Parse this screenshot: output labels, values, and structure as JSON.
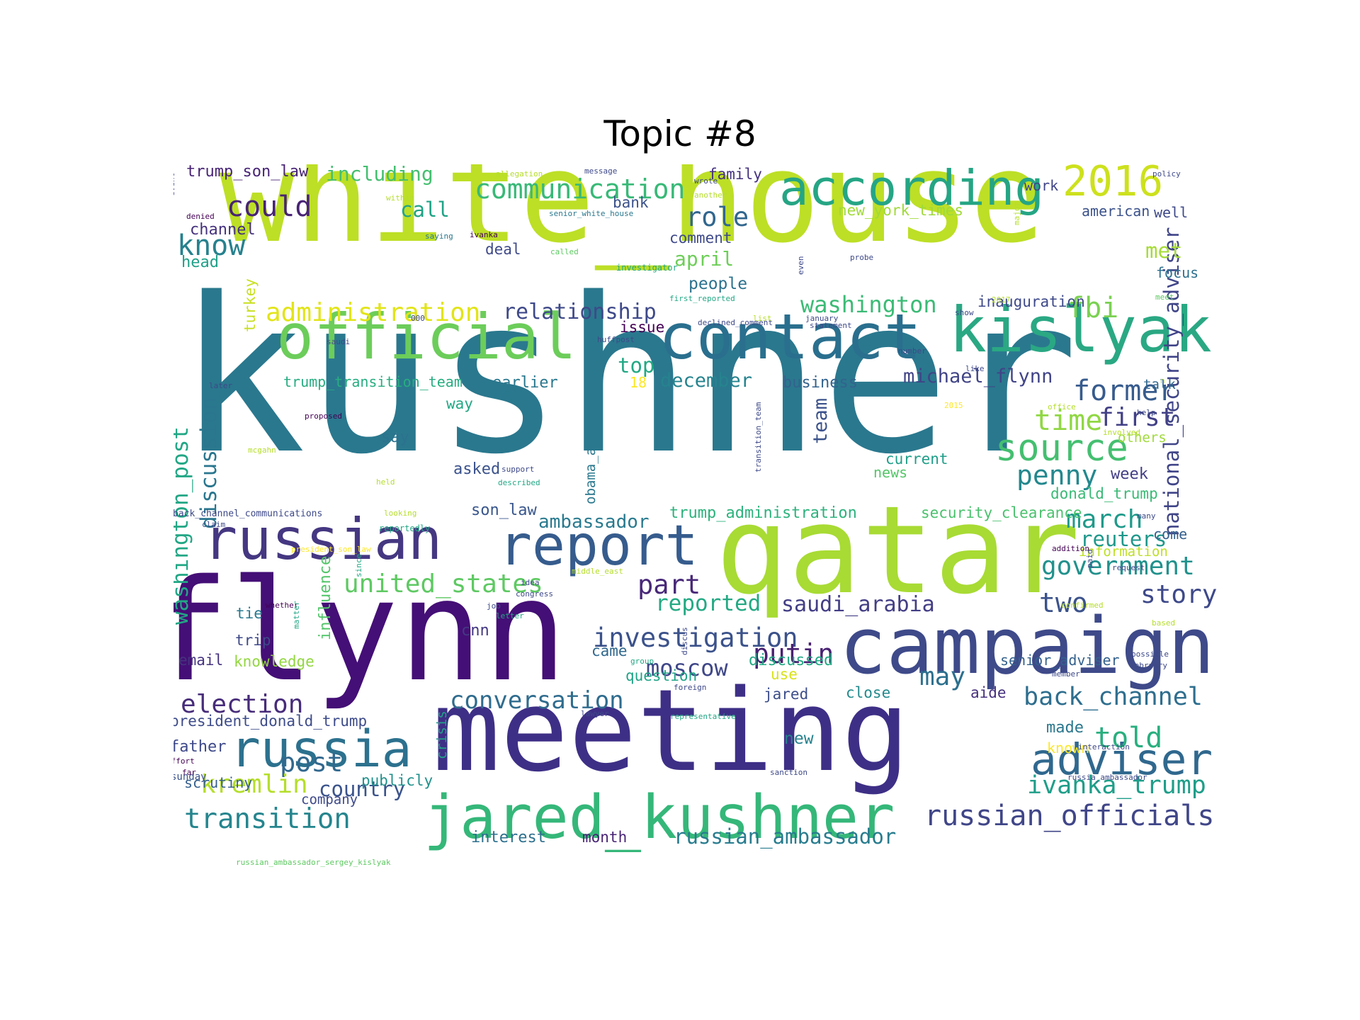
{
  "title": "Topic #8",
  "words": [
    {
      "text": "kushner",
      "color": "#2a788e"
    },
    {
      "text": "white_house",
      "color": "#bddf26"
    },
    {
      "text": "flynn",
      "color": "#440f76"
    },
    {
      "text": "qatar",
      "color": "#a8db34"
    },
    {
      "text": "meeting",
      "color": "#3e2f86"
    },
    {
      "text": "campaign",
      "color": "#3e4a89"
    },
    {
      "text": "contact",
      "color": "#2a6f8e"
    },
    {
      "text": "kislyak",
      "color": "#2aa883"
    },
    {
      "text": "official",
      "color": "#6ccd5a"
    },
    {
      "text": "according",
      "color": "#25a584"
    },
    {
      "text": "jared_kushner",
      "color": "#35b779"
    },
    {
      "text": "russian",
      "color": "#453781"
    },
    {
      "text": "report",
      "color": "#365c8d"
    },
    {
      "text": "russia",
      "color": "#2c718e"
    },
    {
      "text": "adviser",
      "color": "#30688e"
    },
    {
      "text": "2016",
      "color": "#cde11d"
    },
    {
      "text": "source",
      "color": "#44bf70"
    },
    {
      "text": "communication",
      "color": "#38b977"
    },
    {
      "text": "investigation",
      "color": "#3b528b"
    },
    {
      "text": "conversation",
      "color": "#2f6c8e"
    },
    {
      "text": "russian_officials",
      "color": "#404688"
    },
    {
      "text": "election",
      "color": "#472c7a"
    },
    {
      "text": "transition",
      "color": "#25858e"
    },
    {
      "text": "could",
      "color": "#482374"
    },
    {
      "text": "know",
      "color": "#26818e"
    },
    {
      "text": "role",
      "color": "#31668e"
    },
    {
      "text": "administration",
      "color": "#e2e418"
    },
    {
      "text": "relationship",
      "color": "#3e4989"
    },
    {
      "text": "washington",
      "color": "#3bbb75"
    },
    {
      "text": "fbi",
      "color": "#7ad151"
    },
    {
      "text": "former",
      "color": "#375b8d"
    },
    {
      "text": "first",
      "color": "#424086"
    },
    {
      "text": "time",
      "color": "#90d743"
    },
    {
      "text": "penny",
      "color": "#23888e"
    },
    {
      "text": "march",
      "color": "#1f9a8a"
    },
    {
      "text": "reuters",
      "color": "#1f988b"
    },
    {
      "text": "government",
      "color": "#21918c"
    },
    {
      "text": "story",
      "color": "#3e4989"
    },
    {
      "text": "two",
      "color": "#3b528b"
    },
    {
      "text": "told",
      "color": "#29af7f"
    },
    {
      "text": "back_channel",
      "color": "#2e6e8e"
    },
    {
      "text": "ivanka_trump",
      "color": "#1f9e89"
    },
    {
      "text": "russian_ambassador",
      "color": "#287c8e"
    },
    {
      "text": "united_states",
      "color": "#5ec962"
    },
    {
      "text": "part",
      "color": "#482878"
    },
    {
      "text": "reported",
      "color": "#23a983"
    },
    {
      "text": "saudi_arabia",
      "color": "#433e85"
    },
    {
      "text": "putin",
      "color": "#482172"
    },
    {
      "text": "moscow",
      "color": "#3f4788"
    },
    {
      "text": "may",
      "color": "#2d708e"
    },
    {
      "text": "post",
      "color": "#31688e"
    },
    {
      "text": "kremlin",
      "color": "#b5de2b"
    },
    {
      "text": "country",
      "color": "#3a538b"
    },
    {
      "text": "including",
      "color": "#44bf70"
    },
    {
      "text": "trump_son_law",
      "color": "#482475"
    },
    {
      "text": "call",
      "color": "#20a386"
    },
    {
      "text": "channel",
      "color": "#46327e"
    },
    {
      "text": "head",
      "color": "#1fa088"
    },
    {
      "text": "april",
      "color": "#6ece58"
    },
    {
      "text": "people",
      "color": "#2c728e"
    },
    {
      "text": "washington_post",
      "color": "#22a785"
    },
    {
      "text": "discussion",
      "color": "#2a768e"
    },
    {
      "text": "december",
      "color": "#25838e"
    },
    {
      "text": "michael_flynn",
      "color": "#414487"
    },
    {
      "text": "business",
      "color": "#33638d"
    },
    {
      "text": "national_security_adviser",
      "color": "#404588"
    },
    {
      "text": "ambassador",
      "color": "#297a8e"
    },
    {
      "text": "trump_administration",
      "color": "#2db27d"
    },
    {
      "text": "security_clearance",
      "color": "#4ac16d"
    },
    {
      "text": "donald_trump",
      "color": "#3aba76"
    },
    {
      "text": "information",
      "color": "#bddf26"
    },
    {
      "text": "come",
      "color": "#35608d"
    },
    {
      "text": "team",
      "color": "#3b528b"
    },
    {
      "text": "top",
      "color": "#22a884"
    },
    {
      "text": "earlier",
      "color": "#2a788e"
    },
    {
      "text": "say",
      "color": "#2c728e"
    },
    {
      "text": "asked",
      "color": "#3b528b"
    },
    {
      "text": "current",
      "color": "#1f9e89"
    },
    {
      "text": "news",
      "color": "#54c568"
    },
    {
      "text": "week",
      "color": "#433e85"
    },
    {
      "text": "son_law",
      "color": "#39568c"
    },
    {
      "text": "cnn",
      "color": "#443983"
    },
    {
      "text": "came",
      "color": "#31688e"
    },
    {
      "text": "discussed",
      "color": "#22a884"
    },
    {
      "text": "use",
      "color": "#d8e219"
    },
    {
      "text": "question",
      "color": "#20a386"
    },
    {
      "text": "jared",
      "color": "#3d4e8a"
    },
    {
      "text": "close",
      "color": "#238a8d"
    },
    {
      "text": "aide",
      "color": "#46307e"
    },
    {
      "text": "senior_adviser",
      "color": "#34618d"
    },
    {
      "text": "made",
      "color": "#2a778e"
    },
    {
      "text": "new",
      "color": "#26828e"
    },
    {
      "text": "email",
      "color": "#46337f"
    },
    {
      "text": "knowledge",
      "color": "#93d741"
    },
    {
      "text": "trip",
      "color": "#3e4989"
    },
    {
      "text": "tie",
      "color": "#29798e"
    },
    {
      "text": "influence",
      "color": "#52c569"
    },
    {
      "text": "president_donald_trump",
      "color": "#3e4c8a"
    },
    {
      "text": "father",
      "color": "#3e4989"
    },
    {
      "text": "scrutiny",
      "color": "#355f8d"
    },
    {
      "text": "company",
      "color": "#3e4989"
    },
    {
      "text": "publicly",
      "color": "#21918c"
    },
    {
      "text": "interest",
      "color": "#2d708e"
    },
    {
      "text": "month",
      "color": "#482475"
    },
    {
      "text": "family",
      "color": "#46327e"
    },
    {
      "text": "bank",
      "color": "#3b528b"
    },
    {
      "text": "comment",
      "color": "#3e4a89"
    },
    {
      "text": "deal",
      "color": "#3e4989"
    },
    {
      "text": "issue",
      "color": "#440154"
    },
    {
      "text": "work",
      "color": "#404588"
    },
    {
      "text": "new_york_times",
      "color": "#a0da39"
    },
    {
      "text": "american",
      "color": "#3b528b"
    },
    {
      "text": "well",
      "color": "#3e4989"
    },
    {
      "text": "met",
      "color": "#a5db36"
    },
    {
      "text": "focus",
      "color": "#2d708e"
    },
    {
      "text": "inauguration",
      "color": "#3e4989"
    },
    {
      "text": "talk",
      "color": "#31688e"
    },
    {
      "text": "others",
      "color": "#9fda3a"
    },
    {
      "text": "way",
      "color": "#22a884"
    },
    {
      "text": "trump_transition_team",
      "color": "#27ad81"
    },
    {
      "text": "turkey",
      "color": "#c8e020"
    },
    {
      "text": "obama_administration",
      "color": "#2a788e"
    },
    {
      "text": "crisis",
      "color": "#1fa188"
    },
    {
      "text": "back_channel_communications",
      "color": "#3e4989"
    },
    {
      "text": "sunday",
      "color": "#3b528b"
    },
    {
      "text": "effort",
      "color": "#440154"
    },
    {
      "text": "far",
      "color": "#440154"
    },
    {
      "text": "russian_ambassador_sergey_kislyak",
      "color": "#5ec962"
    },
    {
      "text": "allegation",
      "color": "#b5de2b"
    },
    {
      "text": "message",
      "color": "#3e4989"
    },
    {
      "text": "within",
      "color": "#b5de2b"
    },
    {
      "text": "senior_white_house",
      "color": "#2a788e"
    },
    {
      "text": "saying",
      "color": "#2a788e"
    },
    {
      "text": "ivanka",
      "color": "#440154"
    },
    {
      "text": "called",
      "color": "#5ec962"
    },
    {
      "text": "investigator",
      "color": "#22a884"
    },
    {
      "text": "first_reported",
      "color": "#22a884"
    },
    {
      "text": "declined_comment",
      "color": "#3e4989"
    },
    {
      "text": "huffpost",
      "color": "#3e4989"
    },
    {
      "text": "statement",
      "color": "#3e4989"
    },
    {
      "text": "wrote",
      "color": "#3e4989"
    },
    {
      "text": "another",
      "color": "#b5de2b"
    },
    {
      "text": "policy",
      "color": "#3e4989"
    },
    {
      "text": "probe",
      "color": "#3e4989"
    },
    {
      "text": "even",
      "color": "#3e4989"
    },
    {
      "text": "january",
      "color": "#3e4989"
    },
    {
      "text": "show",
      "color": "#3e4989"
    },
    {
      "text": "list",
      "color": "#b5de2b"
    },
    {
      "text": "2017",
      "color": "#b5de2b"
    },
    {
      "text": "major",
      "color": "#b5de2b"
    },
    {
      "text": "meet",
      "color": "#5ec962"
    },
    {
      "text": "number",
      "color": "#3e4989"
    },
    {
      "text": "like",
      "color": "#3e4989"
    },
    {
      "text": "2015",
      "color": "#fde725"
    },
    {
      "text": "office",
      "color": "#b5de2b"
    },
    {
      "text": "help",
      "color": "#3e4989"
    },
    {
      "text": "involved",
      "color": "#b5de2b"
    },
    {
      "text": "n",
      "color": "#b5de2b"
    },
    {
      "text": "18",
      "color": "#fde725"
    },
    {
      "text": "event",
      "color": "#3e4989"
    },
    {
      "text": "denied",
      "color": "#440154"
    },
    {
      "text": "000",
      "color": "#3e4989"
    },
    {
      "text": "saudi",
      "color": "#3e4989"
    },
    {
      "text": "later",
      "color": "#3e4989"
    },
    {
      "text": "proposed",
      "color": "#440154"
    },
    {
      "text": "mcgahn",
      "color": "#b5de2b"
    },
    {
      "text": "transition_team",
      "color": "#3e4989"
    },
    {
      "text": "support",
      "color": "#3e4989"
    },
    {
      "text": "described",
      "color": "#22a884"
    },
    {
      "text": "held",
      "color": "#b5de2b"
    },
    {
      "text": "looking",
      "color": "#b5de2b"
    },
    {
      "text": "claim",
      "color": "#3e4989"
    },
    {
      "text": "reportedly",
      "color": "#22a884"
    },
    {
      "text": "president_son_law",
      "color": "#fde725"
    },
    {
      "text": "since",
      "color": "#22a884"
    },
    {
      "text": "idea",
      "color": "#3e4989"
    },
    {
      "text": "middle_east",
      "color": "#b5de2b"
    },
    {
      "text": "congress",
      "color": "#3e4989"
    },
    {
      "text": "job",
      "color": "#3e4989"
    },
    {
      "text": "letter",
      "color": "#22a884"
    },
    {
      "text": "whether",
      "color": "#440154"
    },
    {
      "text": "matter",
      "color": "#22a884"
    },
    {
      "text": "discus",
      "color": "#3e4989"
    },
    {
      "text": "group",
      "color": "#22a884"
    },
    {
      "text": "foreign",
      "color": "#3e4989"
    },
    {
      "text": "lawyer",
      "color": "#3e4989"
    },
    {
      "text": "representative",
      "color": "#22a884"
    },
    {
      "text": "addition",
      "color": "#440154"
    },
    {
      "text": "paid",
      "color": "#3e4989"
    },
    {
      "text": "request",
      "color": "#3e4989"
    },
    {
      "text": "confirmed",
      "color": "#b5de2b"
    },
    {
      "text": "based",
      "color": "#b5de2b"
    },
    {
      "text": "possible",
      "color": "#3e4989"
    },
    {
      "text": "february",
      "color": "#3e4989"
    },
    {
      "text": "member",
      "color": "#3e4989"
    },
    {
      "text": "known",
      "color": "#fde725"
    },
    {
      "text": "interaction",
      "color": "#3e4989"
    },
    {
      "text": "sanction",
      "color": "#3e4989"
    },
    {
      "text": "russia_ambassador",
      "color": "#3e4989"
    },
    {
      "text": "many",
      "color": "#3e4989"
    }
  ]
}
